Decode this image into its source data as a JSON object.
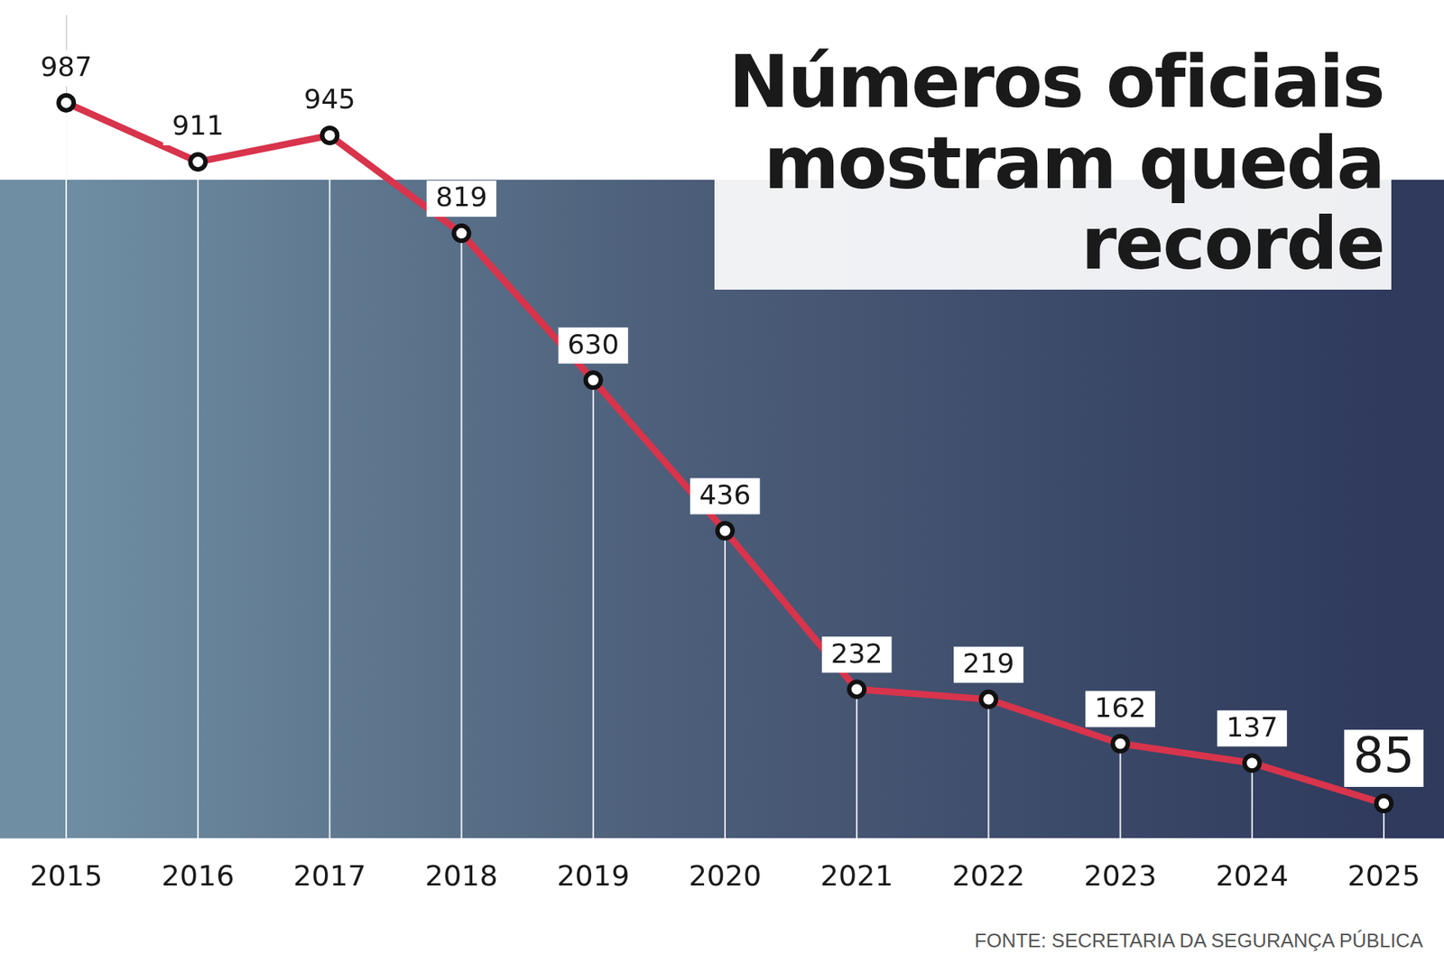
{
  "chart_data": {
    "type": "line",
    "title": "Números oficiais mostram queda recorde",
    "source": "FONTE: SECRETARIA DA SEGURANÇA PÚBLICA",
    "categories": [
      "2015",
      "2016",
      "2017",
      "2018",
      "2019",
      "2020",
      "2021",
      "2022",
      "2023",
      "2024",
      "2025"
    ],
    "values": [
      987,
      911,
      945,
      819,
      630,
      436,
      232,
      219,
      162,
      137,
      85
    ],
    "color": "#d8344c",
    "marker": "circle",
    "ylim": [
      40,
      1100
    ],
    "yticks": [],
    "grid": false,
    "data_labels": true,
    "tick_labels": "x"
  }
}
